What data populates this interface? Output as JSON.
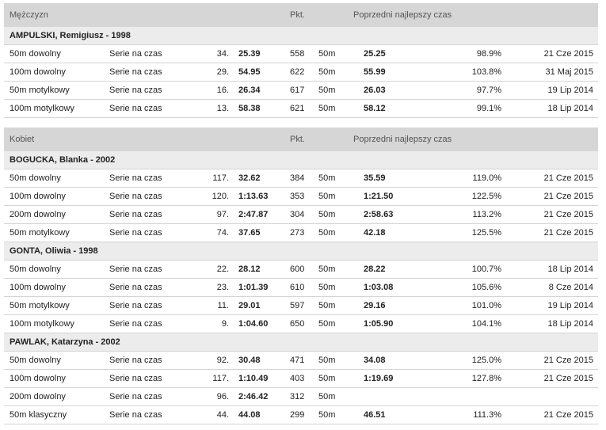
{
  "men": {
    "header": {
      "title": "Mężczyzn",
      "points": "Pkt.",
      "previous": "Poprzedni najlepszy czas"
    },
    "athletes": [
      {
        "name": "AMPULSKI, Remigiusz - 1998",
        "results": [
          {
            "event": "50m dowolny",
            "round": "Serie na czas",
            "rank": "34.",
            "time": "25.39",
            "points": "558",
            "pool": "50m",
            "prev_time": "25.25",
            "pct": "98.9%",
            "date": "21 Cze 2015"
          },
          {
            "event": "100m dowolny",
            "round": "Serie na czas",
            "rank": "29.",
            "time": "54.95",
            "points": "622",
            "pool": "50m",
            "prev_time": "55.99",
            "pct": "103.8%",
            "date": "31 Maj 2015"
          },
          {
            "event": "50m motylkowy",
            "round": "Serie na czas",
            "rank": "16.",
            "time": "26.34",
            "points": "617",
            "pool": "50m",
            "prev_time": "26.03",
            "pct": "97.7%",
            "date": "19 Lip 2014"
          },
          {
            "event": "100m motylkowy",
            "round": "Serie na czas",
            "rank": "13.",
            "time": "58.38",
            "points": "621",
            "pool": "50m",
            "prev_time": "58.12",
            "pct": "99.1%",
            "date": "18 Lip 2014"
          }
        ]
      }
    ]
  },
  "women": {
    "header": {
      "title": "Kobiet",
      "points": "Pkt.",
      "previous": "Poprzedni najlepszy czas"
    },
    "athletes": [
      {
        "name": "BOGUCKA, Blanka - 2002",
        "results": [
          {
            "event": "50m dowolny",
            "round": "Serie na czas",
            "rank": "117.",
            "time": "32.62",
            "points": "384",
            "pool": "50m",
            "prev_time": "35.59",
            "pct": "119.0%",
            "date": "21 Cze 2015"
          },
          {
            "event": "100m dowolny",
            "round": "Serie na czas",
            "rank": "120.",
            "time": "1:13.63",
            "points": "353",
            "pool": "50m",
            "prev_time": "1:21.50",
            "pct": "122.5%",
            "date": "21 Cze 2015"
          },
          {
            "event": "200m dowolny",
            "round": "Serie na czas",
            "rank": "97.",
            "time": "2:47.87",
            "points": "304",
            "pool": "50m",
            "prev_time": "2:58.63",
            "pct": "113.2%",
            "date": "21 Cze 2015"
          },
          {
            "event": "50m motylkowy",
            "round": "Serie na czas",
            "rank": "74.",
            "time": "37.65",
            "points": "273",
            "pool": "50m",
            "prev_time": "42.18",
            "pct": "125.5%",
            "date": "21 Cze 2015"
          }
        ]
      },
      {
        "name": "GONTA, Oliwia - 1998",
        "results": [
          {
            "event": "50m dowolny",
            "round": "Serie na czas",
            "rank": "22.",
            "time": "28.12",
            "points": "600",
            "pool": "50m",
            "prev_time": "28.22",
            "pct": "100.7%",
            "date": "18 Lip 2014"
          },
          {
            "event": "100m dowolny",
            "round": "Serie na czas",
            "rank": "23.",
            "time": "1:01.39",
            "points": "610",
            "pool": "50m",
            "prev_time": "1:03.08",
            "pct": "105.6%",
            "date": "8 Cze 2014"
          },
          {
            "event": "50m motylkowy",
            "round": "Serie na czas",
            "rank": "11.",
            "time": "29.01",
            "points": "597",
            "pool": "50m",
            "prev_time": "29.16",
            "pct": "101.0%",
            "date": "19 Lip 2014"
          },
          {
            "event": "100m motylkowy",
            "round": "Serie na czas",
            "rank": "9.",
            "time": "1:04.60",
            "points": "650",
            "pool": "50m",
            "prev_time": "1:05.90",
            "pct": "104.1%",
            "date": "18 Lip 2014"
          }
        ]
      },
      {
        "name": "PAWLAK, Katarzyna - 2002",
        "results": [
          {
            "event": "50m dowolny",
            "round": "Serie na czas",
            "rank": "92.",
            "time": "30.48",
            "points": "471",
            "pool": "50m",
            "prev_time": "34.08",
            "pct": "125.0%",
            "date": "21 Cze 2015"
          },
          {
            "event": "100m dowolny",
            "round": "Serie na czas",
            "rank": "117.",
            "time": "1:10.49",
            "points": "403",
            "pool": "50m",
            "prev_time": "1:19.69",
            "pct": "127.8%",
            "date": "21 Cze 2015"
          },
          {
            "event": "200m dowolny",
            "round": "Serie na czas",
            "rank": "96.",
            "time": "2:46.42",
            "points": "312",
            "pool": "50m",
            "prev_time": "",
            "pct": "",
            "date": ""
          },
          {
            "event": "50m klasyczny",
            "round": "Serie na czas",
            "rank": "44.",
            "time": "44.08",
            "points": "299",
            "pool": "50m",
            "prev_time": "46.51",
            "pct": "111.3%",
            "date": "21 Cze 2015"
          }
        ]
      }
    ]
  }
}
